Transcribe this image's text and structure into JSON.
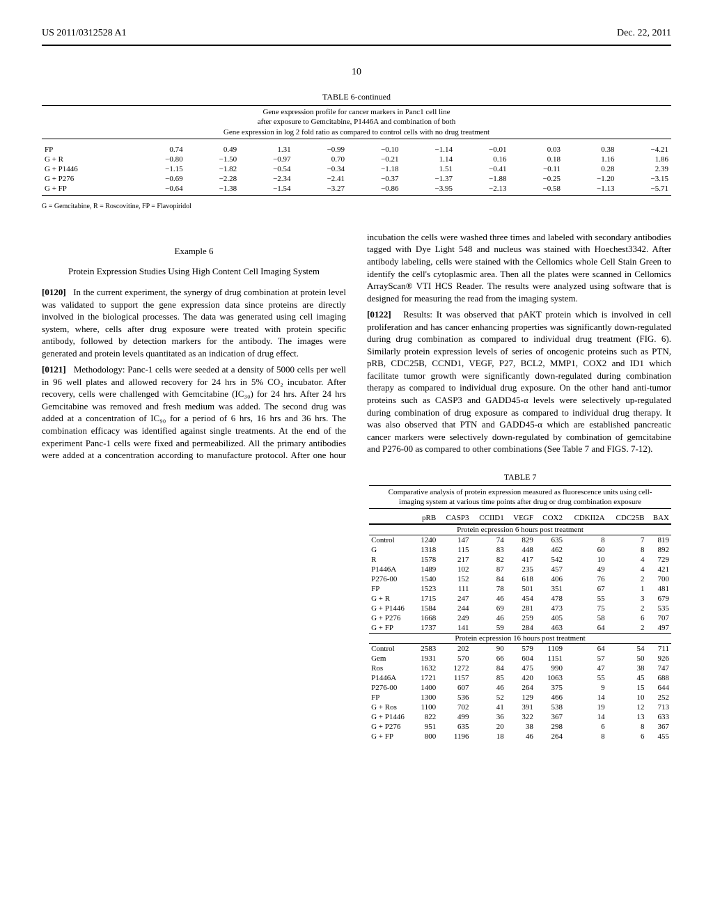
{
  "header": {
    "left": "US 2011/0312528 A1",
    "right": "Dec. 22, 2011"
  },
  "page_number": "10",
  "table6": {
    "title": "TABLE 6-continued",
    "caption_l1": "Gene expression profile for cancer markers in Panc1 cell line",
    "caption_l2": "after exposure to Gemcitabine, P1446A and combination of both",
    "caption_l3": "Gene expression in log 2 fold ratio as compared to control cells with no drug treatment",
    "rows": [
      {
        "label": "FP",
        "c": [
          "0.74",
          "0.49",
          "1.31",
          "−0.99",
          "−0.10",
          "−1.14",
          "−0.01",
          "0.03",
          "0.38",
          "−4.21"
        ]
      },
      {
        "label": "G + R",
        "c": [
          "−0.80",
          "−1.50",
          "−0.97",
          "0.70",
          "−0.21",
          "1.14",
          "0.16",
          "0.18",
          "1.16",
          "1.86"
        ]
      },
      {
        "label": "G + P1446",
        "c": [
          "−1.15",
          "−1.82",
          "−0.54",
          "−0.34",
          "−1.18",
          "1.51",
          "−0.41",
          "−0.11",
          "0.28",
          "2.39"
        ]
      },
      {
        "label": "G + P276",
        "c": [
          "−0.69",
          "−2.28",
          "−2.34",
          "−2.41",
          "−0.37",
          "−1.37",
          "−1.88",
          "−0.25",
          "−1.20",
          "−3.15"
        ]
      },
      {
        "label": "G + FP",
        "c": [
          "−0.64",
          "−1.38",
          "−1.54",
          "−3.27",
          "−0.86",
          "−3.95",
          "−2.13",
          "−0.58",
          "−1.13",
          "−5.71"
        ]
      }
    ],
    "footnote": "G = Gemcitabine, R = Roscovitine, FP = Flavopiridol"
  },
  "example6": {
    "label": "Example 6",
    "heading": "Protein Expression Studies Using High Content Cell Imaging System",
    "p0120_num": "[0120]",
    "p0120": "In the current experiment, the synergy of drug combination at protein level was validated to support the gene expression data since proteins are directly involved in the biological processes. The data was generated using cell imaging system, where, cells after drug exposure were treated with protein specific antibody, followed by detection markers for the antibody. The images were generated and protein levels quantitated as an indication of drug effect.",
    "p0121_num": "[0121]",
    "p0121": "Methodology: Panc-1 cells were seeded at a density of 5000 cells per well in 96 well plates and allowed recovery for 24 hrs in 5% CO₂ incubator. After recovery, cells were challenged with Gemcitabine (IC₃₀) for 24 hrs. After 24 hrs Gemcitabine was removed and fresh medium was added. The second drug was added at a concentration of IC₉₀ for a period of 6 hrs, 16 hrs and 36 hrs. The combination efficacy was identified against single treatments. At the end of the experiment Panc-1 cells were fixed and permeabilized. All the primary antibodies were added at a concentration according to manufacture protocol. After one hour incubation the cells were washed three times and labeled with secondary antibodies tagged with Dye Light 548 and nucleus was stained with Hoechest3342. After antibody labeling, cells were stained with the Cellomics whole Cell Stain Green to identify the cell's cytoplasmic area. Then all the plates were scanned in Cellomics ArrayScan® VTI HCS Reader. The results were analyzed using software that is designed for measuring the read from the imaging system.",
    "p0122_num": "[0122]",
    "p0122": "Results: It was observed that pAKT protein which is involved in cell proliferation and has cancer enhancing properties was significantly down-regulated during drug combination as compared to individual drug treatment (FIG. 6). Similarly protein expression levels of series of oncogenic proteins such as PTN, pRB, CDC25B, CCND1, VEGF, P27, BCL2, MMP1, COX2 and ID1 which facilitate tumor growth were significantly down-regulated during combination therapy as compared to individual drug exposure. On the other hand anti-tumor proteins such as CASP3 and GADD45-α levels were selectively up-regulated during combination of drug exposure as compared to individual drug therapy. It was also observed that PTN and GADD45-α which are established pancreatic cancer markers were selectively down-regulated by combination of gemcitabine and P276-00 as compared to other combinations (See Table 7 and FIGS. 7-12)."
  },
  "table7": {
    "title": "TABLE 7",
    "caption_l1": "Comparative analysis of protein expression measured as fluorescence units using cell-",
    "caption_l2": "imaging system at various time points after drug or drug combination exposure",
    "headers": [
      "",
      "pRB",
      "CASP3",
      "CCIID1",
      "VEGF",
      "COX2",
      "CDKII2A",
      "CDC25B",
      "BAX"
    ],
    "sub1": "Protein ecpression 6 hours post treatment",
    "sub2": "Protein ecpression 16 hours post treatment",
    "rows6": [
      {
        "label": "Control",
        "c": [
          "1240",
          "147",
          "74",
          "829",
          "635",
          "8",
          "7",
          "819"
        ]
      },
      {
        "label": "G",
        "c": [
          "1318",
          "115",
          "83",
          "448",
          "462",
          "60",
          "8",
          "892"
        ]
      },
      {
        "label": "R",
        "c": [
          "1578",
          "217",
          "82",
          "417",
          "542",
          "10",
          "4",
          "729"
        ]
      },
      {
        "label": "P1446A",
        "c": [
          "1489",
          "102",
          "87",
          "235",
          "457",
          "49",
          "4",
          "421"
        ]
      },
      {
        "label": "P276-00",
        "c": [
          "1540",
          "152",
          "84",
          "618",
          "406",
          "76",
          "2",
          "700"
        ]
      },
      {
        "label": "FP",
        "c": [
          "1523",
          "111",
          "78",
          "501",
          "351",
          "67",
          "1",
          "481"
        ]
      },
      {
        "label": "G + R",
        "c": [
          "1715",
          "247",
          "46",
          "454",
          "478",
          "55",
          "3",
          "679"
        ]
      },
      {
        "label": "G + P1446",
        "c": [
          "1584",
          "244",
          "69",
          "281",
          "473",
          "75",
          "2",
          "535"
        ]
      },
      {
        "label": "G + P276",
        "c": [
          "1668",
          "249",
          "46",
          "259",
          "405",
          "58",
          "6",
          "707"
        ]
      },
      {
        "label": "G + FP",
        "c": [
          "1737",
          "141",
          "59",
          "284",
          "463",
          "64",
          "2",
          "497"
        ]
      }
    ],
    "rows16": [
      {
        "label": "Control",
        "c": [
          "2583",
          "202",
          "90",
          "579",
          "1109",
          "64",
          "54",
          "711"
        ]
      },
      {
        "label": "Gem",
        "c": [
          "1931",
          "570",
          "66",
          "604",
          "1151",
          "57",
          "50",
          "926"
        ]
      },
      {
        "label": "Ros",
        "c": [
          "1632",
          "1272",
          "84",
          "475",
          "990",
          "47",
          "38",
          "747"
        ]
      },
      {
        "label": "P1446A",
        "c": [
          "1721",
          "1157",
          "85",
          "420",
          "1063",
          "55",
          "45",
          "688"
        ]
      },
      {
        "label": "P276-00",
        "c": [
          "1400",
          "607",
          "46",
          "264",
          "375",
          "9",
          "15",
          "644"
        ]
      },
      {
        "label": "FP",
        "c": [
          "1300",
          "536",
          "52",
          "129",
          "466",
          "14",
          "10",
          "252"
        ]
      },
      {
        "label": "G + Ros",
        "c": [
          "1100",
          "702",
          "41",
          "391",
          "538",
          "19",
          "12",
          "713"
        ]
      },
      {
        "label": "G + P1446",
        "c": [
          "822",
          "499",
          "36",
          "322",
          "367",
          "14",
          "13",
          "633"
        ]
      },
      {
        "label": "G + P276",
        "c": [
          "951",
          "635",
          "20",
          "38",
          "298",
          "6",
          "8",
          "367"
        ]
      },
      {
        "label": "G + FP",
        "c": [
          "800",
          "1196",
          "18",
          "46",
          "264",
          "8",
          "6",
          "455"
        ]
      }
    ]
  }
}
